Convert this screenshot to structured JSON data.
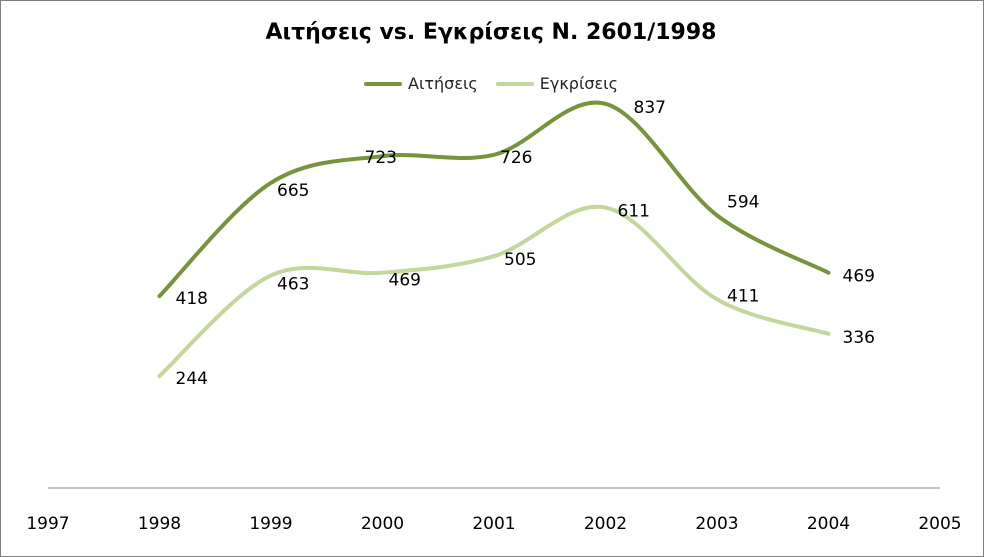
{
  "chart_data": {
    "type": "line",
    "title": "Αιτήσεις vs. Εγκρίσεις Ν. 2601/1998",
    "xlabel": "",
    "ylabel": "",
    "x_ticks": [
      "1997",
      "1998",
      "1999",
      "2000",
      "2001",
      "2002",
      "2003",
      "2004",
      "2005"
    ],
    "x": [
      1998,
      1999,
      2000,
      2001,
      2002,
      2003,
      2004
    ],
    "xlim": [
      1997,
      2005
    ],
    "ylim": [
      0,
      1000
    ],
    "smooth": true,
    "grid": false,
    "legend_position": "top",
    "series": [
      {
        "name": "Αιτήσεις",
        "color": "#77933c",
        "values": [
          418,
          665,
          723,
          726,
          837,
          594,
          469
        ]
      },
      {
        "name": "Εγκρίσεις",
        "color": "#c3d69b",
        "values": [
          244,
          463,
          469,
          505,
          611,
          411,
          336
        ]
      }
    ]
  }
}
